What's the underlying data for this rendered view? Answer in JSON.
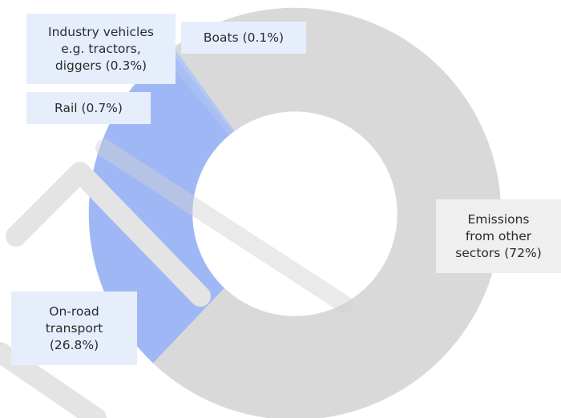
{
  "chart_data": {
    "type": "pie",
    "donut": true,
    "title": "",
    "legend": "none",
    "slices": [
      {
        "label": "Boats (0.1%)",
        "value": 0.1,
        "color": "#b9ccf6"
      },
      {
        "label": "Industry vehicles\ne.g. tractors,\ndiggers (0.3%)",
        "value": 0.3,
        "color": "#b3c7f4"
      },
      {
        "label": "Rail (0.7%)",
        "value": 0.7,
        "color": "#a8bff3"
      },
      {
        "label": "On-road\ntransport\n(26.8%)",
        "value": 26.8,
        "color": "#9fb8f5"
      },
      {
        "label": "Emissions\nfrom other\nsectors (72%)",
        "value": 72,
        "color": "#d9d9d9"
      }
    ]
  }
}
